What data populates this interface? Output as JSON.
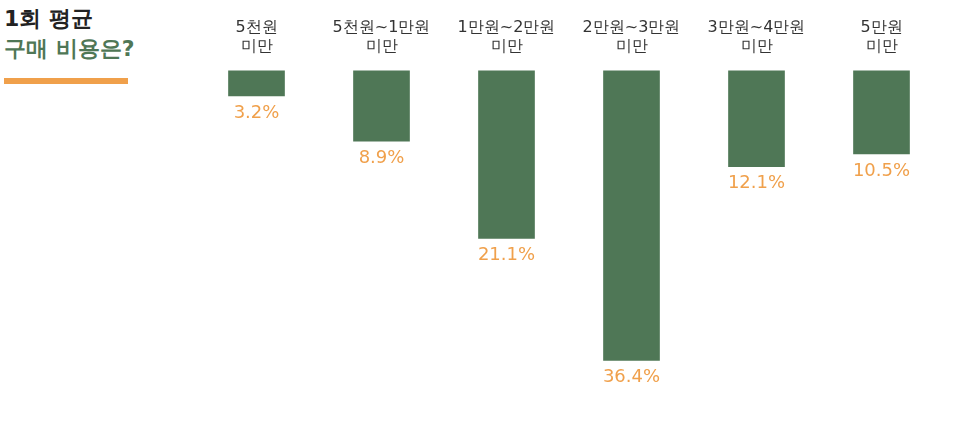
{
  "chart_data": {
    "type": "bar",
    "title": "1회 평균",
    "subtitle": "구매 비용은?",
    "categories": [
      "5천원 미만",
      "5천원~1만원 미만",
      "1만원~2만원 미만",
      "2만원~3만원 미만",
      "3만원~4만원 미만",
      "5만원 미만"
    ],
    "values": [
      3.2,
      8.9,
      21.1,
      36.4,
      12.1,
      10.5
    ],
    "value_labels": [
      "3.2%",
      "8.9%",
      "21.1%",
      "36.4%",
      "12.1%",
      "10.5%"
    ],
    "color": "#4f7756",
    "ylim": [
      0,
      40
    ],
    "yticks": [
      0,
      10,
      20,
      30,
      40
    ],
    "grid": false,
    "data_labels": true,
    "tick_labels": "x"
  }
}
